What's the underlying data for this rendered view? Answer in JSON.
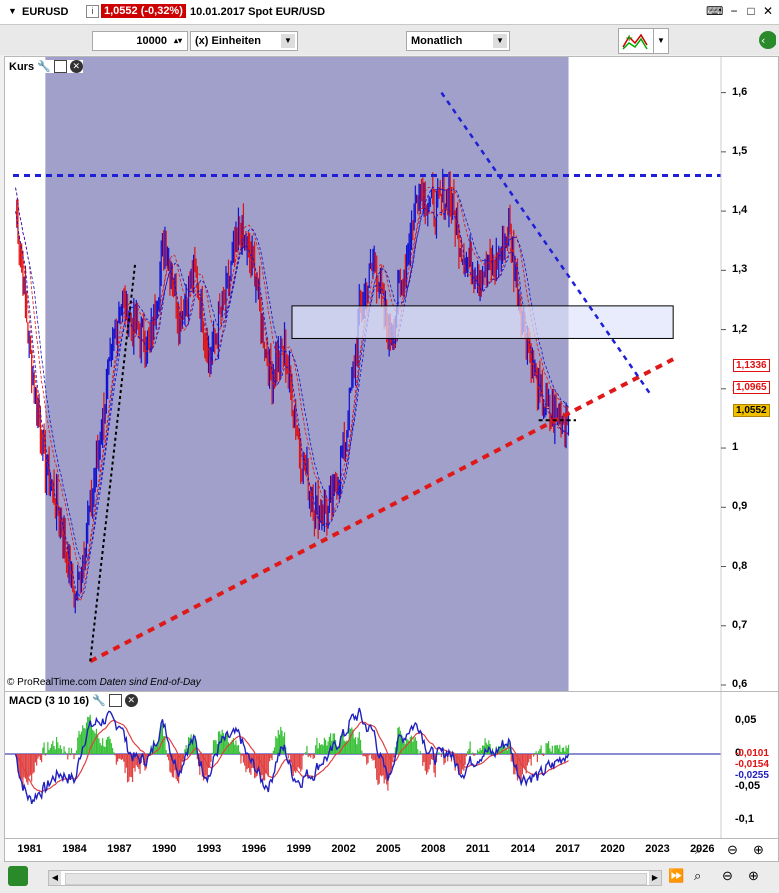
{
  "header": {
    "symbol": "EURUSD",
    "info_icon": "i",
    "price_change": "1,0552 (-0,32%)",
    "date_info": "10.01.2017  Spot EUR/USD",
    "icons": [
      "keyboard-icon",
      "minimize-icon",
      "maximize-icon",
      "close-icon"
    ]
  },
  "toolbar": {
    "quantity": "10000",
    "unit": "(x) Einheiten",
    "period": "Monatlich"
  },
  "price_panel": {
    "title": "Kurs",
    "copyright": "© ProRealTime.com",
    "note": "Daten sind End-of-Day",
    "y_labels": [
      "1,6",
      "1,5",
      "1,4",
      "1,3",
      "1,2",
      "1,1",
      "1",
      "0,9",
      "0,8",
      "0,7",
      "0,6"
    ],
    "tags": {
      "ma1": "1,1336",
      "ma2": "1,0965",
      "last": "1,0552"
    }
  },
  "macd_panel": {
    "title": "MACD (3 10 16)",
    "y_labels": [
      "0,05",
      "0",
      "-0,05",
      "-0,1"
    ],
    "tags": {
      "v1": "-0,0101",
      "v2": "-0,0154",
      "v3": "-0,0255"
    }
  },
  "x_axis": {
    "labels": [
      "1981",
      "1984",
      "1987",
      "1990",
      "1993",
      "1996",
      "1999",
      "2002",
      "2005",
      "2008",
      "2011",
      "2014",
      "2017",
      "2020",
      "2023",
      "2026"
    ]
  },
  "colors": {
    "bull": "#1010d0",
    "bear": "#e01010",
    "shade": "#8080b8",
    "resistance": "#1f1fd6",
    "support": "#e01818",
    "tag_red": "#e01010",
    "tag_blue": "#2020c0",
    "tag_last_bg": "#f0c000"
  },
  "chart_data": {
    "type": "candlestick",
    "period": "Monatlich",
    "x": [
      1980,
      1981,
      1982,
      1983,
      1984,
      1985,
      1986,
      1987,
      1988,
      1989,
      1990,
      1991,
      1992,
      1993,
      1994,
      1995,
      1996,
      1997,
      1998,
      1999,
      2000,
      2001,
      2002,
      2003,
      2004,
      2005,
      2006,
      2007,
      2008,
      2009,
      2010,
      2011,
      2012,
      2013,
      2014,
      2015,
      2016,
      2017
    ],
    "close": [
      1.42,
      1.15,
      0.97,
      0.88,
      0.74,
      0.9,
      1.08,
      1.25,
      1.2,
      1.18,
      1.35,
      1.22,
      1.3,
      1.15,
      1.25,
      1.37,
      1.3,
      1.12,
      1.17,
      1.0,
      0.9,
      0.89,
      1.0,
      1.22,
      1.32,
      1.18,
      1.3,
      1.45,
      1.4,
      1.43,
      1.32,
      1.3,
      1.3,
      1.37,
      1.21,
      1.09,
      1.05,
      1.0552
    ],
    "ylim": [
      0.6,
      1.65
    ],
    "annotations": {
      "resistance_horizontal": 1.46,
      "support_trendline": {
        "from": [
          1985,
          0.64
        ],
        "to": [
          2024,
          1.15
        ]
      },
      "downtrend_line": {
        "from": [
          2008.5,
          1.6
        ],
        "to": [
          2022.5,
          1.09
        ]
      },
      "rectangle_zone": {
        "x": [
          1998.5,
          2024
        ],
        "y": [
          1.185,
          1.24
        ]
      },
      "shaded_period": [
        1982,
        2017
      ]
    }
  }
}
